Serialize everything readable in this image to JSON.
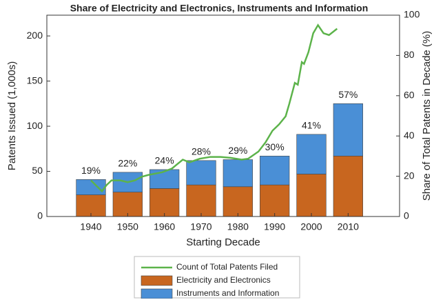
{
  "chart_data": {
    "type": "bar",
    "title": "Share of Electricity and Electronics, Instruments and Information",
    "xlabel": "Starting Decade",
    "ylabel": "Patents Issued (1,000s)",
    "y2label": "Share of Total Patents in Decade (%)",
    "x": [
      1940,
      1950,
      1960,
      1970,
      1980,
      1990,
      2000,
      2010
    ],
    "xlim": [
      1928,
      2024
    ],
    "xticks": [
      1940,
      1950,
      1960,
      1970,
      1980,
      1990,
      2000,
      2010
    ],
    "ylim": [
      0,
      223
    ],
    "yticks": [
      0,
      50,
      100,
      150,
      200
    ],
    "y2lim": [
      0,
      100
    ],
    "y2ticks": [
      0,
      20,
      40,
      60,
      80,
      100
    ],
    "stacked": true,
    "series": [
      {
        "name": "Count of Total Patents Filed",
        "type": "line",
        "color": "#5cb34a",
        "x": [
          1940,
          1941.5,
          1943,
          1944.3,
          1945.6,
          1948,
          1950,
          1952,
          1953.8,
          1955.6,
          1959.4,
          1962,
          1965,
          1966.8,
          1969.6,
          1972.5,
          1975.3,
          1978,
          1981,
          1982.8,
          1985.6,
          1987.5,
          1989.4,
          1991.2,
          1993,
          1994,
          1995.5,
          1996.3,
          1997.4,
          1998,
          1999.2,
          2000.5,
          2001.8,
          2003.3,
          2004.8,
          2007
        ],
        "values": [
          40,
          34,
          28,
          35,
          40,
          40,
          38,
          40,
          44,
          46,
          49,
          53,
          63,
          60,
          64,
          66,
          66,
          65,
          63,
          64,
          72,
          82,
          95,
          102,
          111,
          125,
          148,
          146,
          171,
          169,
          182,
          203,
          212,
          203,
          201,
          208
        ]
      },
      {
        "name": "Electricity and Electronics",
        "type": "bar",
        "color": "#c8661f",
        "values": [
          24,
          27,
          31,
          35,
          33,
          35,
          47,
          67
        ]
      },
      {
        "name": "Instruments and Information",
        "type": "bar",
        "color": "#4a8fd6",
        "values": [
          17,
          22,
          21,
          27,
          30,
          32,
          44,
          58
        ]
      }
    ],
    "share": {
      "values": [
        19,
        22,
        24,
        28,
        29,
        30,
        41,
        57
      ],
      "value_labels": [
        "19%",
        "22%",
        "24%",
        "28%",
        "29%",
        "30%",
        "41%",
        "57%"
      ]
    }
  }
}
